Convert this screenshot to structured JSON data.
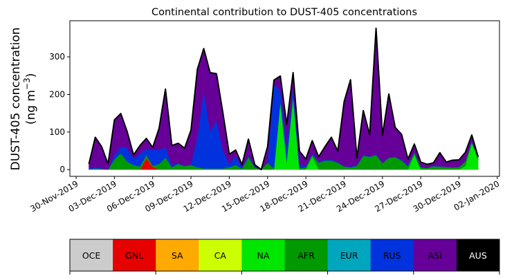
{
  "chart_data": {
    "type": "area",
    "stacked": true,
    "title": "Continental contribution to DUST-405 concentrations",
    "ylabel_line1": "DUST-405 concentration",
    "ylabel_line2_prefix": "(ng m",
    "ylabel_sup": "−3",
    "ylabel_line2_suffix": ")",
    "xlabel": "",
    "x_start": "2019-12-01 00:00",
    "x_step_hours": 12,
    "xlim_days_from_2019_11_30": [
      -0.49,
      33.17
    ],
    "ylim": [
      -18,
      396
    ],
    "yticks": [
      0,
      100,
      200,
      300
    ],
    "xtick_labels": [
      "30-Nov-2019",
      "03-Dec-2019",
      "06-Dec-2019",
      "09-Dec-2019",
      "12-Dec-2019",
      "15-Dec-2019",
      "18-Dec-2019",
      "21-Dec-2019",
      "24-Dec-2019",
      "27-Dec-2019",
      "30-Dec-2019",
      "02-Jan-2020"
    ],
    "xtick_days": [
      0,
      3,
      6,
      9,
      12,
      15,
      18,
      21,
      24,
      27,
      30,
      33
    ],
    "legend": {
      "placement": "bottom colorbar",
      "entries": [
        {
          "name": "OCE",
          "color": "#cccccc",
          "text_color": "#000000"
        },
        {
          "name": "GNL",
          "color": "#e60000",
          "text_color": "#000000"
        },
        {
          "name": "SA",
          "color": "#ffaa00",
          "text_color": "#000000"
        },
        {
          "name": "CA",
          "color": "#ccff00",
          "text_color": "#000000"
        },
        {
          "name": "NA",
          "color": "#00e600",
          "text_color": "#000000"
        },
        {
          "name": "AFR",
          "color": "#009900",
          "text_color": "#000000"
        },
        {
          "name": "EUR",
          "color": "#00a6bd",
          "text_color": "#000000"
        },
        {
          "name": "RUS",
          "color": "#0033dd",
          "text_color": "#000000"
        },
        {
          "name": "ASI",
          "color": "#660099",
          "text_color": "#000000"
        },
        {
          "name": "AUS",
          "color": "#000000",
          "text_color": "#ffffff"
        }
      ]
    },
    "series": [
      {
        "name": "OCE",
        "color": "#cccccc",
        "values": [
          0,
          0,
          0,
          0,
          0,
          0,
          0,
          0,
          0,
          0,
          0,
          0,
          0,
          0,
          0,
          0,
          0,
          0,
          0,
          0,
          0,
          0,
          0,
          0,
          0,
          0,
          0,
          0,
          0,
          0,
          0,
          0,
          0,
          0,
          0,
          0,
          0,
          0,
          0,
          0,
          0,
          0,
          0,
          0,
          0,
          0,
          0,
          0,
          0,
          0,
          0,
          0,
          0,
          0,
          0,
          0,
          0,
          0,
          0,
          0,
          0,
          0
        ]
      },
      {
        "name": "GNL",
        "color": "#e60000",
        "values": [
          0,
          0,
          0,
          0,
          0,
          0,
          0,
          0,
          0,
          31,
          8,
          0,
          0,
          0,
          0,
          0,
          0,
          0,
          0,
          0,
          0,
          0,
          0,
          0,
          0,
          0,
          0,
          0,
          0,
          0,
          0,
          0,
          0,
          0,
          0,
          0,
          0,
          0,
          0,
          0,
          0,
          0,
          0,
          0,
          0,
          0,
          0,
          0,
          0,
          0,
          0,
          0,
          0,
          0,
          2,
          0,
          0,
          0,
          0,
          0,
          0,
          0
        ]
      },
      {
        "name": "SA",
        "color": "#ffaa00",
        "values": [
          0,
          0,
          0,
          0,
          0,
          0,
          0,
          0,
          0,
          0,
          0,
          0,
          0,
          0,
          0,
          0,
          0,
          0,
          0,
          0,
          0,
          0,
          0,
          0,
          0,
          0,
          0,
          0,
          0,
          0,
          0,
          0,
          0,
          0,
          0,
          0,
          0,
          0,
          0,
          0,
          0,
          0,
          0,
          0,
          0,
          0,
          0,
          0,
          0,
          0,
          0,
          0,
          0,
          0,
          0,
          0,
          0,
          0,
          0,
          0,
          0,
          0
        ]
      },
      {
        "name": "CA",
        "color": "#ccff00",
        "values": [
          0,
          0,
          0,
          0,
          0,
          0,
          0,
          0,
          0,
          0,
          0,
          0,
          0,
          0,
          0,
          0,
          0,
          0,
          0,
          0,
          0,
          0,
          0,
          0,
          0,
          0,
          0,
          0,
          0,
          0,
          0,
          0,
          0,
          0,
          0,
          0,
          0,
          0,
          0,
          0,
          0,
          0,
          0,
          0,
          0,
          0,
          0,
          0,
          0,
          0,
          0,
          0,
          0,
          0,
          0,
          0,
          0,
          0,
          0,
          0,
          0,
          0
        ]
      },
      {
        "name": "NA",
        "color": "#00e600",
        "values": [
          0,
          0,
          0,
          0,
          0,
          0,
          0,
          0,
          0,
          0,
          0,
          0,
          0,
          0,
          0,
          0,
          0,
          0,
          0,
          0,
          0,
          0,
          0,
          0,
          0,
          0,
          0,
          0,
          0,
          0,
          181,
          20,
          194,
          0,
          0,
          35,
          0,
          0,
          0,
          0,
          0,
          0,
          0,
          0,
          0,
          0,
          0,
          0,
          0,
          0,
          0,
          40,
          0,
          0,
          0,
          0,
          0,
          0,
          0,
          10,
          71,
          27
        ]
      },
      {
        "name": "AFR",
        "color": "#009900",
        "values": [
          1,
          3,
          2,
          0,
          27,
          43,
          21,
          12,
          8,
          8,
          2,
          15,
          32,
          6,
          15,
          9,
          12,
          6,
          3,
          3,
          3,
          3,
          6,
          12,
          2,
          33,
          6,
          0,
          18,
          2,
          0,
          5,
          0,
          3,
          6,
          4,
          18,
          24,
          24,
          18,
          8,
          6,
          10,
          37,
          34,
          39,
          17,
          31,
          33,
          24,
          9,
          5,
          6,
          4,
          7,
          8,
          7,
          6,
          7,
          12,
          2,
          6
        ]
      },
      {
        "name": "EUR",
        "color": "#00a6bd",
        "values": [
          0,
          0,
          0,
          0,
          0,
          0,
          0,
          0,
          0,
          0,
          0,
          0,
          0,
          0,
          0,
          0,
          0,
          0,
          0,
          0,
          0,
          0,
          0,
          0,
          0,
          0,
          0,
          0,
          0,
          0,
          0,
          0,
          0,
          0,
          0,
          0,
          0,
          0,
          0,
          0,
          0,
          0,
          0,
          0,
          0,
          0,
          0,
          0,
          0,
          0,
          0,
          0,
          0,
          0,
          0,
          0,
          0,
          0,
          0,
          0,
          0,
          0
        ]
      },
      {
        "name": "RUS",
        "color": "#0033dd",
        "values": [
          1,
          5,
          1,
          0,
          12,
          18,
          37,
          17,
          35,
          16,
          43,
          37,
          28,
          6,
          2,
          1,
          3,
          80,
          205,
          98,
          128,
          49,
          9,
          25,
          4,
          4,
          0,
          0,
          0,
          225,
          30,
          40,
          24,
          12,
          3,
          4,
          3,
          3,
          3,
          2,
          1,
          2,
          2,
          2,
          1,
          2,
          1,
          2,
          1,
          3,
          3,
          2,
          2,
          0,
          1,
          1,
          0,
          0,
          0,
          0,
          3,
          0
        ]
      },
      {
        "name": "ASI",
        "color": "#660099",
        "values": [
          13,
          78,
          58,
          15,
          93,
          88,
          43,
          10,
          21,
          28,
          6,
          58,
          154,
          52,
          53,
          47,
          90,
          181,
          114,
          157,
          124,
          99,
          26,
          15,
          7,
          44,
          7,
          0,
          43,
          11,
          38,
          55,
          40,
          34,
          19,
          34,
          13,
          34,
          59,
          29,
          172,
          231,
          19,
          118,
          58,
          335,
          73,
          168,
          78,
          67,
          16,
          21,
          12,
          10,
          8,
          36,
          13,
          19,
          19,
          24,
          16,
          1
        ]
      },
      {
        "name": "AUS",
        "color": "#000000",
        "values": [
          0,
          0,
          0,
          0,
          0,
          0,
          0,
          0,
          0,
          0,
          0,
          0,
          0,
          0,
          0,
          0,
          0,
          0,
          0,
          0,
          0,
          0,
          0,
          0,
          0,
          0,
          0,
          0,
          0,
          0,
          0,
          0,
          0,
          0,
          0,
          0,
          0,
          0,
          0,
          0,
          0,
          0,
          0,
          0,
          0,
          0,
          0,
          0,
          0,
          0,
          0,
          0,
          0,
          0,
          0,
          0,
          0,
          0,
          0,
          0,
          0,
          0
        ]
      }
    ]
  }
}
